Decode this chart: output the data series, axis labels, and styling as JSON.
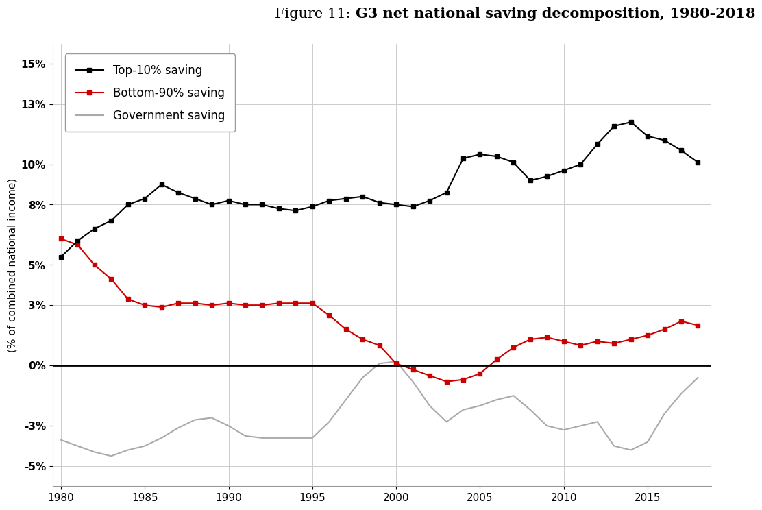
{
  "title_normal": "Figure 11: ",
  "title_bold": "G3 net national saving decomposition, 1980-2018",
  "ylabel": "(% of combined national income)",
  "ylim": [
    -0.06,
    0.16
  ],
  "yticks": [
    -0.05,
    -0.03,
    0.0,
    0.03,
    0.05,
    0.08,
    0.1,
    0.13,
    0.15
  ],
  "ytick_labels": [
    "-5%",
    "-3%",
    "0%",
    "3%",
    "5%",
    "8%",
    "10%",
    "13%",
    "15%"
  ],
  "xlim": [
    1979.5,
    2018.8
  ],
  "xticks": [
    1980,
    1985,
    1990,
    1995,
    2000,
    2005,
    2010,
    2015
  ],
  "top10": {
    "years": [
      1980,
      1981,
      1982,
      1983,
      1984,
      1985,
      1986,
      1987,
      1988,
      1989,
      1990,
      1991,
      1992,
      1993,
      1994,
      1995,
      1996,
      1997,
      1998,
      1999,
      2000,
      2001,
      2002,
      2003,
      2004,
      2005,
      2006,
      2007,
      2008,
      2009,
      2010,
      2011,
      2012,
      2013,
      2014,
      2015,
      2016,
      2017,
      2018
    ],
    "values": [
      0.054,
      0.062,
      0.068,
      0.072,
      0.08,
      0.083,
      0.09,
      0.086,
      0.083,
      0.08,
      0.082,
      0.08,
      0.08,
      0.078,
      0.077,
      0.079,
      0.082,
      0.083,
      0.084,
      0.081,
      0.08,
      0.079,
      0.082,
      0.086,
      0.103,
      0.105,
      0.104,
      0.101,
      0.092,
      0.094,
      0.097,
      0.1,
      0.11,
      0.119,
      0.121,
      0.114,
      0.112,
      0.107,
      0.101
    ],
    "color": "#000000",
    "marker": "s",
    "markersize": 5,
    "linewidth": 1.5,
    "label": "Top-10% saving"
  },
  "bottom90": {
    "years": [
      1980,
      1981,
      1982,
      1983,
      1984,
      1985,
      1986,
      1987,
      1988,
      1989,
      1990,
      1991,
      1992,
      1993,
      1994,
      1995,
      1996,
      1997,
      1998,
      1999,
      2000,
      2001,
      2002,
      2003,
      2004,
      2005,
      2006,
      2007,
      2008,
      2009,
      2010,
      2011,
      2012,
      2013,
      2014,
      2015,
      2016,
      2017,
      2018
    ],
    "values": [
      0.063,
      0.06,
      0.05,
      0.043,
      0.033,
      0.03,
      0.029,
      0.031,
      0.031,
      0.03,
      0.031,
      0.03,
      0.03,
      0.031,
      0.031,
      0.031,
      0.025,
      0.018,
      0.013,
      0.01,
      0.001,
      -0.002,
      -0.005,
      -0.008,
      -0.007,
      -0.004,
      0.003,
      0.009,
      0.013,
      0.014,
      0.012,
      0.01,
      0.012,
      0.011,
      0.013,
      0.015,
      0.018,
      0.022,
      0.02
    ],
    "color": "#cc0000",
    "marker": "s",
    "markersize": 5,
    "linewidth": 1.5,
    "label": "Bottom-90% saving"
  },
  "government": {
    "years": [
      1980,
      1981,
      1982,
      1983,
      1984,
      1985,
      1986,
      1987,
      1988,
      1989,
      1990,
      1991,
      1992,
      1993,
      1994,
      1995,
      1996,
      1997,
      1998,
      1999,
      2000,
      2001,
      2002,
      2003,
      2004,
      2005,
      2006,
      2007,
      2008,
      2009,
      2010,
      2011,
      2012,
      2013,
      2014,
      2015,
      2016,
      2017,
      2018
    ],
    "values": [
      -0.037,
      -0.04,
      -0.043,
      -0.045,
      -0.042,
      -0.04,
      -0.036,
      -0.031,
      -0.027,
      -0.026,
      -0.03,
      -0.035,
      -0.036,
      -0.036,
      -0.036,
      -0.036,
      -0.028,
      -0.017,
      -0.006,
      0.001,
      0.002,
      -0.008,
      -0.02,
      -0.028,
      -0.022,
      -0.02,
      -0.017,
      -0.015,
      -0.022,
      -0.03,
      -0.032,
      -0.03,
      -0.028,
      -0.04,
      -0.042,
      -0.038,
      -0.024,
      -0.014,
      -0.006
    ],
    "color": "#aaaaaa",
    "linewidth": 1.5,
    "label": "Government saving"
  },
  "zero_line_color": "#000000",
  "grid_color": "#cccccc",
  "background_color": "#ffffff",
  "legend_fontsize": 12,
  "axis_fontsize": 11,
  "title_fontsize": 15
}
